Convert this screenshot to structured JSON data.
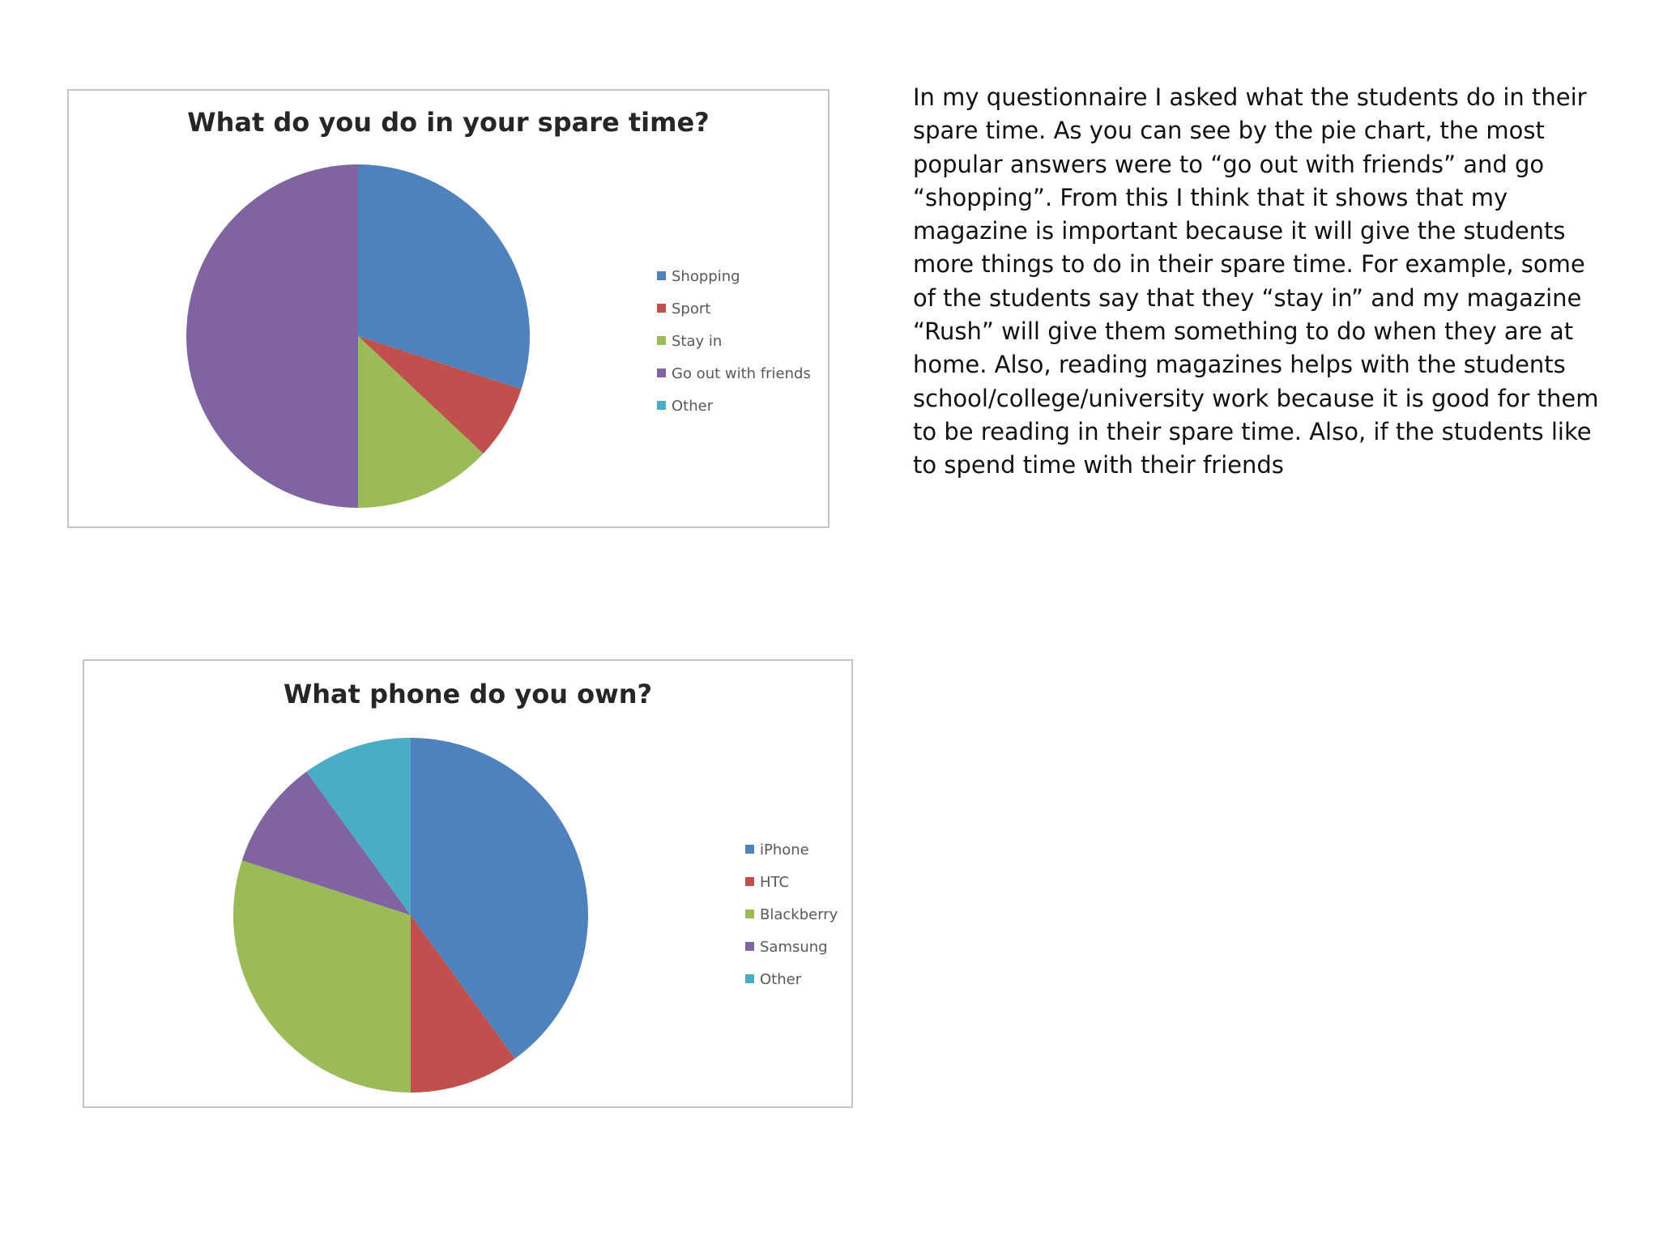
{
  "chart_data": [
    {
      "type": "pie",
      "title": "What do you do in your spare time?",
      "legend_position": "right",
      "categories": [
        "Shopping",
        "Sport",
        "Stay in",
        "Go out with friends",
        "Other"
      ],
      "values": [
        30,
        7,
        13,
        50,
        0
      ],
      "colors": [
        "#4f81bd",
        "#c0504d",
        "#9bbb59",
        "#8064a2",
        "#4bacc6"
      ]
    },
    {
      "type": "pie",
      "title": "What phone do you own?",
      "legend_position": "right",
      "categories": [
        "iPhone",
        "HTC",
        "Blackberry",
        "Samsung",
        "Other"
      ],
      "values": [
        40,
        10,
        30,
        10,
        10
      ],
      "colors": [
        "#4f81bd",
        "#c0504d",
        "#9bbb59",
        "#8064a2",
        "#4bacc6"
      ]
    }
  ],
  "text": {
    "paragraph": "In my questionnaire I asked what the students do in their spare time. As you can see by the pie chart, the most popular answers were to “go out with friends” and go “shopping”. From this I think that it shows that my magazine is important because it will give the students more things to do in their spare time. For example, some of the students say that they “stay in” and my magazine “Rush” will give them something to do when they are at home. Also, reading magazines helps with the students school/college/university work because it is good for them to be reading in their spare time. Also, if the students like to spend time with their friends"
  }
}
